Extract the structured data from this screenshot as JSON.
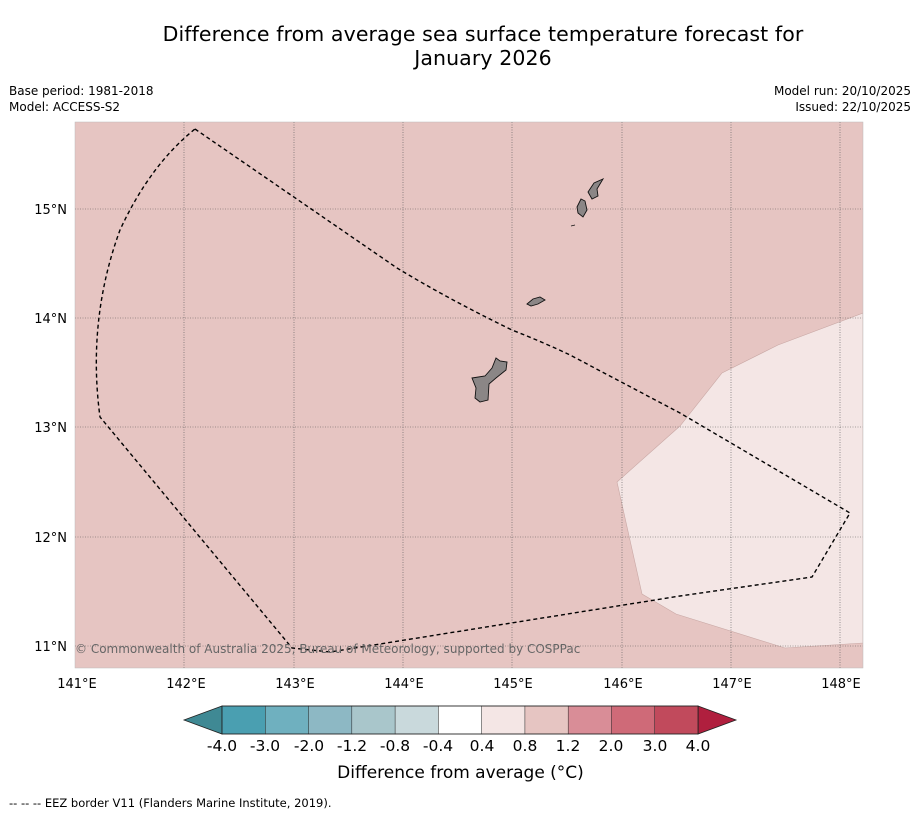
{
  "title_line1": "Difference from average sea surface temperature forecast for",
  "title_line2": "January 2026",
  "base_period": "Base period: 1981-2018",
  "model": "Model: ACCESS-S2",
  "model_run": "Model run: 20/10/2025",
  "issued": "Issued: 22/10/2025",
  "copyright": "© Commonwealth of Australia 2025, Bureau of Meteorology, supported by COSPPac",
  "lon_labels": [
    "141°E",
    "142°E",
    "143°E",
    "144°E",
    "145°E",
    "146°E",
    "147°E",
    "148°E"
  ],
  "lat_labels": [
    "15°N",
    "14°N",
    "13°N",
    "12°N",
    "11°N"
  ],
  "colorbar": {
    "title": "Difference from average (°C)",
    "ticks": [
      "-4.0",
      "-3.0",
      "-2.0",
      "-1.2",
      "-0.8",
      "-0.4",
      "0.4",
      "0.8",
      "1.2",
      "2.0",
      "3.0",
      "4.0"
    ],
    "colors": [
      "#4a9fb1",
      "#6fb0bf",
      "#8db8c4",
      "#a9c6cb",
      "#c9d9dc",
      "#ffffff",
      "#f4e6e5",
      "#e6c5c2",
      "#d98d97",
      "#cf6a78",
      "#c14a5c"
    ],
    "under_color": "#3f8994",
    "over_color": "#b01f3e"
  },
  "map_colors": {
    "background_anomaly": "#e6c5c2",
    "cooler_region": "#f4e6e5",
    "land": "#8b8686"
  },
  "footnote": "-- -- -- EEZ border V11 (Flanders Marine Institute, 2019)."
}
